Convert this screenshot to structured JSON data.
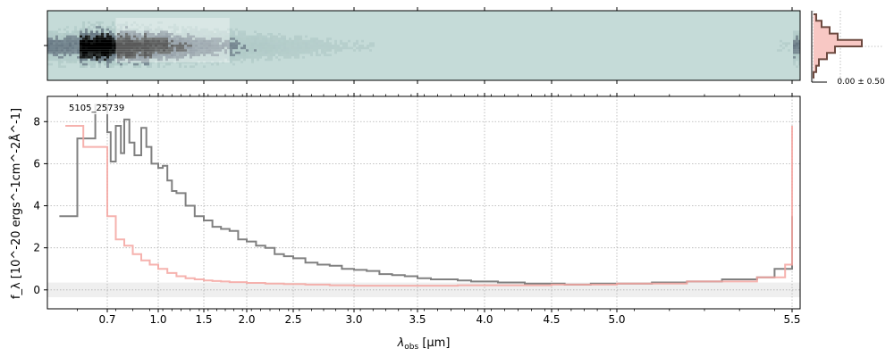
{
  "chart_data": [
    {
      "type": "line",
      "panel": "1d-spectrum",
      "annotation": "5105_25739",
      "xlabel_main": "λ",
      "xlabel_sub": "obs",
      "xlabel_unit": " [μm]",
      "ylabel": "f_λ [10^-20 ergs^-1cm^-2Å^-1]",
      "x_scale": "nonlinear (dispersion-like)",
      "xlim": [
        0.6,
        5.52
      ],
      "ylim": [
        -0.9,
        9.2
      ],
      "x_ticks": [
        {
          "value": 0.7,
          "label": "0.7"
        },
        {
          "value": 1.0,
          "label": "1.0"
        },
        {
          "value": 1.5,
          "label": "1.5"
        },
        {
          "value": 2.0,
          "label": "2.0"
        },
        {
          "value": 2.5,
          "label": "2.5"
        },
        {
          "value": 3.0,
          "label": "3.0"
        },
        {
          "value": 3.5,
          "label": "3.5"
        },
        {
          "value": 4.0,
          "label": "4.0"
        },
        {
          "value": 4.5,
          "label": "4.5"
        },
        {
          "value": 5.0,
          "label": "5.0"
        },
        {
          "value": 5.5,
          "label": "5.5"
        }
      ],
      "y_ticks": [
        {
          "value": 0,
          "label": "0"
        },
        {
          "value": 2,
          "label": "2"
        },
        {
          "value": 4,
          "label": "4"
        },
        {
          "value": 6,
          "label": "6"
        },
        {
          "value": 8,
          "label": "8"
        }
      ],
      "grid": true,
      "series": [
        {
          "color": "#808080",
          "style": "steps",
          "x": [
            0.62,
            0.65,
            0.68,
            0.7,
            0.72,
            0.75,
            0.78,
            0.8,
            0.83,
            0.86,
            0.9,
            0.93,
            0.96,
            1.0,
            1.05,
            1.1,
            1.15,
            1.2,
            1.3,
            1.4,
            1.5,
            1.6,
            1.7,
            1.8,
            1.9,
            2.0,
            2.1,
            2.2,
            2.3,
            2.4,
            2.5,
            2.6,
            2.7,
            2.8,
            2.9,
            3.0,
            3.1,
            3.2,
            3.3,
            3.4,
            3.5,
            3.6,
            3.7,
            3.8,
            3.9,
            4.0,
            4.1,
            4.2,
            4.3,
            4.4,
            4.5,
            4.6,
            4.7,
            4.8,
            4.9,
            5.0,
            5.1,
            5.2,
            5.3,
            5.4,
            5.45,
            5.5
          ],
          "y": [
            3.5,
            7.2,
            8.8,
            7.5,
            6.1,
            7.8,
            6.5,
            8.1,
            7.0,
            6.4,
            7.7,
            6.8,
            6.0,
            5.8,
            5.9,
            5.2,
            4.7,
            4.6,
            4.0,
            3.5,
            3.3,
            3.0,
            2.9,
            2.8,
            2.4,
            2.3,
            2.1,
            2.0,
            1.7,
            1.6,
            1.5,
            1.3,
            1.2,
            1.15,
            1.0,
            0.95,
            0.9,
            0.75,
            0.7,
            0.65,
            0.55,
            0.5,
            0.5,
            0.45,
            0.4,
            0.4,
            0.35,
            0.35,
            0.3,
            0.3,
            0.3,
            0.25,
            0.25,
            0.3,
            0.3,
            0.3,
            0.35,
            0.4,
            0.5,
            0.6,
            1.0,
            3.5
          ]
        },
        {
          "color": "#f4a5a0",
          "style": "steps",
          "x": [
            0.63,
            0.66,
            0.7,
            0.75,
            0.8,
            0.85,
            0.9,
            0.95,
            1.0,
            1.1,
            1.2,
            1.3,
            1.4,
            1.5,
            1.6,
            1.7,
            1.8,
            2.0,
            2.2,
            2.4,
            2.6,
            2.8,
            3.0,
            3.2,
            3.5,
            3.8,
            4.0,
            4.5,
            5.0,
            5.2,
            5.4,
            5.48,
            5.5
          ],
          "y": [
            7.8,
            6.8,
            3.5,
            2.4,
            2.1,
            1.7,
            1.4,
            1.2,
            1.0,
            0.8,
            0.65,
            0.55,
            0.5,
            0.45,
            0.42,
            0.4,
            0.37,
            0.33,
            0.3,
            0.28,
            0.25,
            0.22,
            0.2,
            0.2,
            0.2,
            0.22,
            0.22,
            0.25,
            0.3,
            0.4,
            0.6,
            1.2,
            7.8
          ]
        }
      ]
    },
    {
      "type": "heatmap",
      "panel": "2d-spectrum",
      "xlim": [
        0.6,
        5.52
      ],
      "colormap": [
        "#ffffff",
        "#c5dbd8",
        "#3c4a5c",
        "#000000"
      ],
      "background_value": 0.3,
      "trace_row_fraction": 0.5
    },
    {
      "type": "line",
      "panel": "spatial-profile",
      "annotation": "0.00 ± 0.50",
      "series": [
        {
          "color": "#6d4a40",
          "fill_color": "#f8c8c4",
          "style": "steps-vertical",
          "y": [
            -1.0,
            -0.8,
            -0.6,
            -0.4,
            -0.2,
            0.0,
            0.2,
            0.4,
            0.6,
            0.8,
            1.0
          ],
          "x": [
            0.0,
            0.05,
            0.1,
            0.25,
            0.4,
            0.9,
            0.45,
            0.3,
            0.15,
            0.05,
            0.0
          ]
        }
      ]
    }
  ]
}
